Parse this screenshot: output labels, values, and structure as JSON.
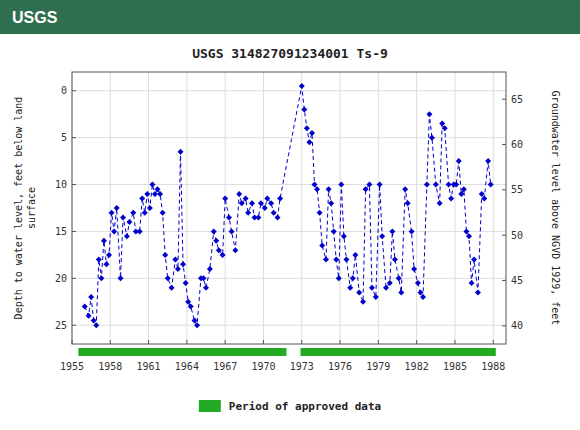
{
  "chart_data": {
    "type": "line",
    "title": "USGS 314827091234001 Ts-9",
    "annotations": [
      "USGS"
    ],
    "ylabel": "Depth to water level, feet below land\nsurface",
    "y2label": "Groundwater level above NGVD 1929, feet",
    "xlim": [
      1955,
      1989
    ],
    "xticks": [
      1955,
      1958,
      1961,
      1964,
      1967,
      1970,
      1973,
      1976,
      1979,
      1982,
      1985,
      1988
    ],
    "ylim": [
      27,
      -2
    ],
    "yticks": [
      0,
      5,
      10,
      15,
      20,
      25
    ],
    "y2lim": [
      38,
      68
    ],
    "y2ticks": [
      40,
      45,
      50,
      55,
      60,
      65
    ],
    "grid": true,
    "x": [
      1956.0,
      1956.3,
      1956.5,
      1956.7,
      1956.9,
      1957.1,
      1957.3,
      1957.5,
      1957.7,
      1957.9,
      1958.1,
      1958.3,
      1958.5,
      1958.8,
      1959.0,
      1959.3,
      1959.5,
      1959.8,
      1960.0,
      1960.3,
      1960.5,
      1960.7,
      1960.9,
      1961.1,
      1961.3,
      1961.5,
      1961.7,
      1961.9,
      1962.1,
      1962.3,
      1962.5,
      1962.8,
      1963.1,
      1963.3,
      1963.5,
      1963.7,
      1963.9,
      1964.1,
      1964.3,
      1964.6,
      1964.8,
      1965.1,
      1965.3,
      1965.5,
      1965.8,
      1966.1,
      1966.3,
      1966.5,
      1966.8,
      1967.0,
      1967.3,
      1967.5,
      1967.8,
      1968.1,
      1968.3,
      1968.6,
      1968.8,
      1969.1,
      1969.3,
      1969.6,
      1969.8,
      1970.1,
      1970.3,
      1970.6,
      1970.8,
      1971.1,
      1971.3,
      1973.0,
      1973.2,
      1973.4,
      1973.6,
      1973.8,
      1974.0,
      1974.2,
      1974.4,
      1974.6,
      1974.9,
      1975.1,
      1975.3,
      1975.5,
      1975.7,
      1975.9,
      1976.1,
      1976.3,
      1976.5,
      1976.8,
      1977.0,
      1977.2,
      1977.5,
      1977.8,
      1978.0,
      1978.3,
      1978.5,
      1978.8,
      1979.1,
      1979.3,
      1979.6,
      1979.9,
      1980.1,
      1980.3,
      1980.6,
      1980.8,
      1981.1,
      1981.3,
      1981.6,
      1981.8,
      1982.1,
      1982.3,
      1982.5,
      1982.8,
      1983.0,
      1983.2,
      1983.5,
      1983.8,
      1984.0,
      1984.2,
      1984.5,
      1984.7,
      1984.9,
      1985.1,
      1985.3,
      1985.5,
      1985.7,
      1985.9,
      1986.1,
      1986.3,
      1986.5,
      1986.8,
      1987.1,
      1987.3,
      1987.6,
      1987.8
    ],
    "series": [
      {
        "color": "#0000cc",
        "marker": "diamond",
        "line_style": "dashed",
        "values": [
          23.0,
          24.0,
          22.0,
          24.5,
          25.0,
          18.0,
          20.0,
          16.0,
          18.5,
          17.5,
          13.0,
          15.0,
          12.5,
          20.0,
          13.5,
          15.5,
          14.0,
          13.0,
          15.0,
          15.0,
          11.5,
          13.0,
          11.0,
          12.5,
          10.0,
          11.0,
          10.5,
          11.0,
          13.0,
          17.5,
          20.0,
          21.0,
          18.0,
          19.0,
          6.5,
          18.5,
          20.5,
          22.5,
          23.0,
          24.5,
          25.0,
          20.0,
          20.0,
          21.0,
          19.0,
          15.0,
          16.0,
          17.0,
          17.5,
          11.5,
          13.5,
          15.0,
          17.0,
          11.0,
          12.0,
          11.5,
          13.0,
          12.0,
          13.5,
          13.5,
          12.0,
          12.5,
          11.5,
          12.0,
          13.0,
          13.5,
          11.5,
          -0.5,
          2.0,
          4.0,
          5.5,
          4.5,
          10.0,
          10.5,
          13.0,
          16.5,
          18.0,
          10.5,
          12.0,
          15.0,
          18.0,
          20.0,
          10.0,
          15.5,
          18.0,
          21.0,
          20.0,
          17.5,
          21.5,
          22.5,
          10.5,
          10.0,
          21.0,
          22.0,
          10.0,
          15.5,
          21.0,
          20.5,
          15.0,
          18.0,
          20.0,
          21.5,
          10.5,
          12.0,
          15.0,
          19.0,
          20.5,
          21.5,
          22.0,
          10.0,
          2.5,
          5.0,
          10.0,
          12.0,
          3.5,
          4.0,
          10.0,
          11.5,
          10.0,
          10.0,
          7.5,
          11.0,
          10.5,
          15.0,
          15.5,
          20.5,
          18.0,
          21.5,
          11.0,
          11.5,
          7.5,
          10.0
        ]
      }
    ],
    "approved_periods": {
      "name": "Period of approved data",
      "color": "#22aa22",
      "ranges": [
        [
          1955.5,
          1971.8
        ],
        [
          1972.9,
          1988.2
        ]
      ]
    }
  }
}
